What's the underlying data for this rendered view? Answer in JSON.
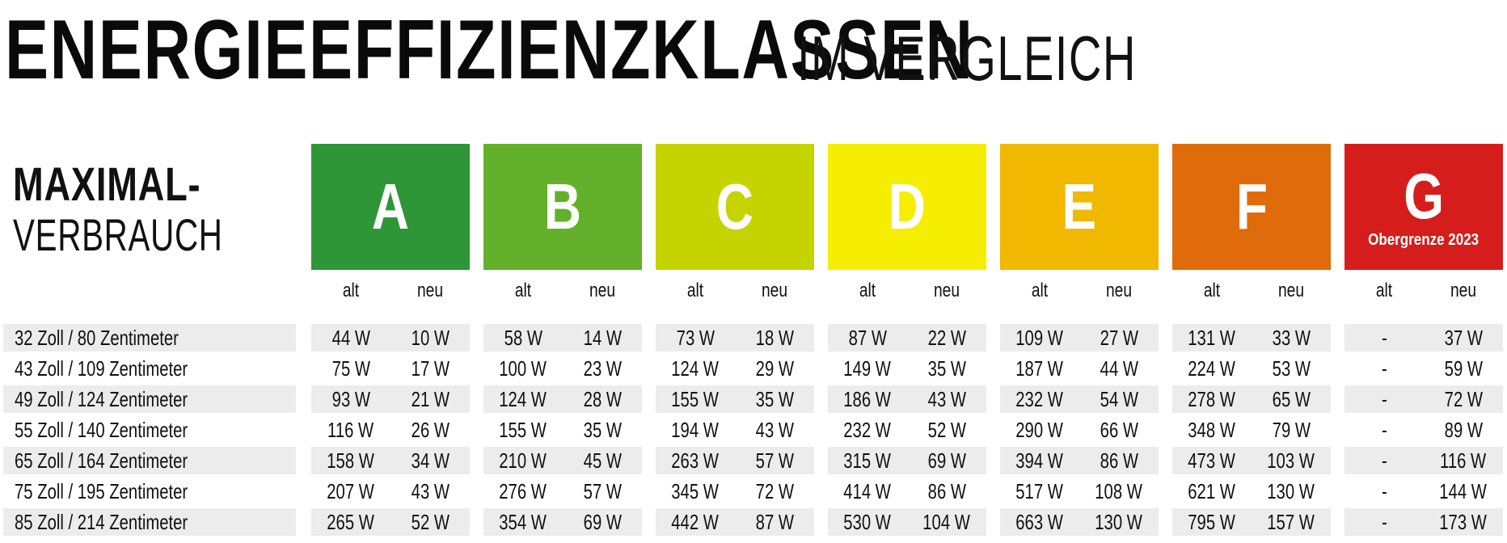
{
  "title": {
    "main": "ENERGIEEFFIZIENZKLASSEN",
    "sub": "IM VERGLEICH"
  },
  "side_header": {
    "line1": "MAXIMAL-",
    "line2": "VERBRAUCH"
  },
  "sub_labels": {
    "old": "alt",
    "new": "neu"
  },
  "classes": [
    {
      "letter": "A",
      "note": "",
      "color": "#2f9637"
    },
    {
      "letter": "B",
      "note": "",
      "color": "#63b12b"
    },
    {
      "letter": "C",
      "note": "",
      "color": "#c5d400"
    },
    {
      "letter": "D",
      "note": "",
      "color": "#f6ee00"
    },
    {
      "letter": "E",
      "note": "",
      "color": "#f1b800"
    },
    {
      "letter": "F",
      "note": "",
      "color": "#e06b0a"
    },
    {
      "letter": "G",
      "note": "Obergrenze 2023",
      "color": "#d51e1c"
    }
  ],
  "chart_data": {
    "type": "table",
    "title": "ENERGIEEFFIZIENZKLASSEN IM VERGLEICH",
    "row_header": "MAXIMAL-VERBRAUCH",
    "columns": [
      "A",
      "B",
      "C",
      "D",
      "E",
      "F",
      "G"
    ],
    "rows": [
      {
        "label": "32 Zoll / 80 Zentimeter",
        "values": [
          [
            "44 W",
            "10 W"
          ],
          [
            "58 W",
            "14 W"
          ],
          [
            "73 W",
            "18 W"
          ],
          [
            "87 W",
            "22 W"
          ],
          [
            "109 W",
            "27 W"
          ],
          [
            "131 W",
            "33 W"
          ],
          [
            "-",
            "37 W"
          ]
        ]
      },
      {
        "label": "43 Zoll / 109 Zentimeter",
        "values": [
          [
            "75 W",
            "17 W"
          ],
          [
            "100 W",
            "23 W"
          ],
          [
            "124 W",
            "29 W"
          ],
          [
            "149 W",
            "35 W"
          ],
          [
            "187 W",
            "44 W"
          ],
          [
            "224 W",
            "53 W"
          ],
          [
            "-",
            "59 W"
          ]
        ]
      },
      {
        "label": "49 Zoll / 124 Zentimeter",
        "values": [
          [
            "93 W",
            "21 W"
          ],
          [
            "124 W",
            "28 W"
          ],
          [
            "155 W",
            "35 W"
          ],
          [
            "186 W",
            "43 W"
          ],
          [
            "232 W",
            "54 W"
          ],
          [
            "278 W",
            "65 W"
          ],
          [
            "-",
            "72 W"
          ]
        ]
      },
      {
        "label": "55 Zoll / 140 Zentimeter",
        "values": [
          [
            "116 W",
            "26 W"
          ],
          [
            "155 W",
            "35 W"
          ],
          [
            "194 W",
            "43 W"
          ],
          [
            "232 W",
            "52 W"
          ],
          [
            "290 W",
            "66 W"
          ],
          [
            "348 W",
            "79 W"
          ],
          [
            "-",
            "89 W"
          ]
        ]
      },
      {
        "label": "65 Zoll / 164 Zentimeter",
        "values": [
          [
            "158 W",
            "34 W"
          ],
          [
            "210 W",
            "45 W"
          ],
          [
            "263 W",
            "57 W"
          ],
          [
            "315 W",
            "69 W"
          ],
          [
            "394 W",
            "86 W"
          ],
          [
            "473 W",
            "103 W"
          ],
          [
            "-",
            "116 W"
          ]
        ]
      },
      {
        "label": "75 Zoll / 195 Zentimeter",
        "values": [
          [
            "207 W",
            "43 W"
          ],
          [
            "276 W",
            "57 W"
          ],
          [
            "345 W",
            "72 W"
          ],
          [
            "414 W",
            "86 W"
          ],
          [
            "517 W",
            "108 W"
          ],
          [
            "621 W",
            "130 W"
          ],
          [
            "-",
            "144 W"
          ]
        ]
      },
      {
        "label": "85 Zoll / 214 Zentimeter",
        "values": [
          [
            "265 W",
            "52 W"
          ],
          [
            "354 W",
            "69 W"
          ],
          [
            "442 W",
            "87 W"
          ],
          [
            "530 W",
            "104 W"
          ],
          [
            "663 W",
            "130 W"
          ],
          [
            "795 W",
            "157 W"
          ],
          [
            "-",
            "173 W"
          ]
        ]
      }
    ]
  }
}
